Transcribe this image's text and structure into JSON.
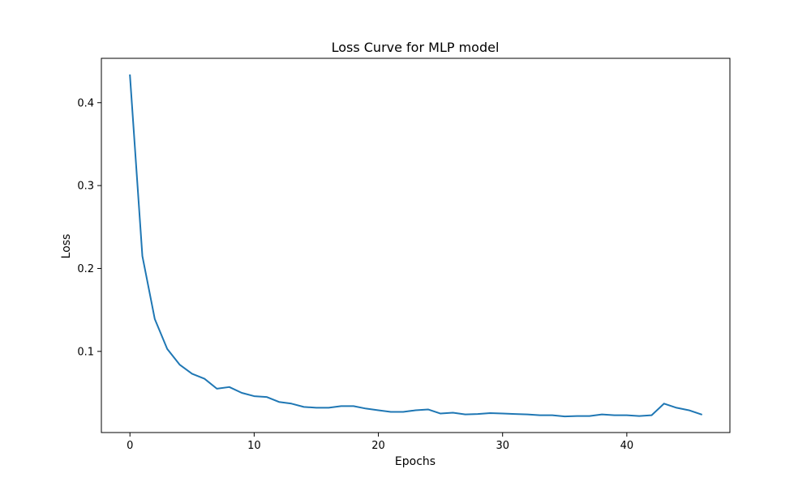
{
  "chart_data": {
    "type": "line",
    "title": "Loss Curve for MLP model",
    "xlabel": "Epochs",
    "ylabel": "Loss",
    "xlim": [
      -2.3,
      48.3
    ],
    "ylim": [
      0.0021,
      0.4535
    ],
    "xticks": [
      0,
      10,
      20,
      30,
      40
    ],
    "yticks": [
      0.1,
      0.2,
      0.3,
      0.4
    ],
    "xtick_labels": [
      "0",
      "10",
      "20",
      "30",
      "40"
    ],
    "ytick_labels": [
      "0.1",
      "0.2",
      "0.3",
      "0.4"
    ],
    "grid": false,
    "line_color": "#1f77b4",
    "series": [
      {
        "x": [
          0,
          1,
          2,
          3,
          4,
          5,
          6,
          7,
          8,
          9,
          10,
          11,
          12,
          13,
          14,
          15,
          16,
          17,
          18,
          19,
          20,
          21,
          22,
          23,
          24,
          25,
          26,
          27,
          28,
          29,
          30,
          31,
          32,
          33,
          34,
          35,
          36,
          37,
          38,
          39,
          40,
          41,
          42,
          43,
          44,
          45,
          46
        ],
        "values": [
          0.433,
          0.215,
          0.139,
          0.103,
          0.084,
          0.073,
          0.067,
          0.055,
          0.057,
          0.05,
          0.046,
          0.045,
          0.039,
          0.037,
          0.033,
          0.032,
          0.032,
          0.034,
          0.034,
          0.031,
          0.029,
          0.027,
          0.027,
          0.029,
          0.03,
          0.025,
          0.026,
          0.024,
          0.0245,
          0.0255,
          0.025,
          0.0245,
          0.024,
          0.023,
          0.023,
          0.0215,
          0.022,
          0.022,
          0.024,
          0.023,
          0.023,
          0.022,
          0.023,
          0.037,
          0.032,
          0.029,
          0.024
        ]
      }
    ]
  }
}
